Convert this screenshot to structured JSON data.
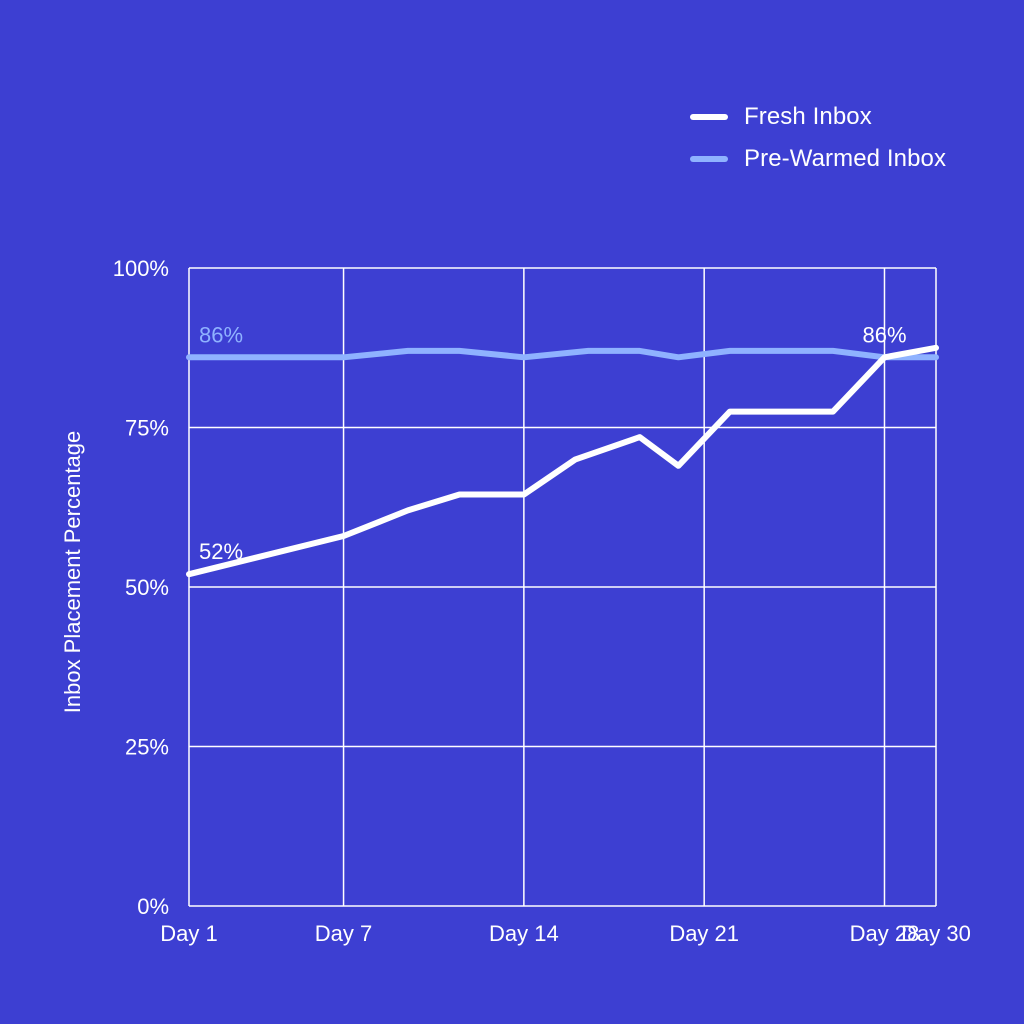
{
  "chart_data": {
    "type": "line",
    "title": "",
    "xlabel": "",
    "ylabel": "Inbox Placement Percentage",
    "x_ticks": [
      "Day 1",
      "Day 7",
      "Day 14",
      "Day 21",
      "Day 28",
      "Day 30"
    ],
    "x_tick_days": [
      1,
      7,
      14,
      21,
      28,
      30
    ],
    "xlim": [
      1,
      30
    ],
    "y_ticks": [
      "0%",
      "25%",
      "50%",
      "75%",
      "100%"
    ],
    "y_tick_values": [
      0,
      25,
      50,
      75,
      100
    ],
    "ylim": [
      0,
      100
    ],
    "grid": true,
    "legend_position": "top-right",
    "series": [
      {
        "name": "Fresh Inbox",
        "color": "#ffffff",
        "x": [
          1,
          7,
          9.5,
          11.5,
          14,
          16,
          18.5,
          20,
          22,
          26,
          28,
          30
        ],
        "values": [
          52,
          58,
          62,
          64.5,
          64.5,
          70,
          73.5,
          69,
          77.5,
          77.5,
          86,
          87.5
        ]
      },
      {
        "name": "Pre-Warmed Inbox",
        "color": "#8fb2ff",
        "x": [
          1,
          7,
          9.5,
          11.5,
          14,
          16.5,
          18.5,
          20,
          22,
          24,
          26,
          28,
          30
        ],
        "values": [
          86,
          86,
          87,
          87,
          86,
          87,
          87,
          86,
          87,
          87,
          87,
          86,
          86
        ]
      }
    ],
    "annotations": [
      {
        "text": "86%",
        "series": "Pre-Warmed Inbox",
        "x": 1,
        "y": 86,
        "color": "#8fb2ff"
      },
      {
        "text": "52%",
        "series": "Fresh Inbox",
        "x": 1,
        "y": 52,
        "color": "#ffffff"
      },
      {
        "text": "86%",
        "series": "Fresh Inbox",
        "x": 28,
        "y": 86,
        "color": "#ffffff"
      }
    ]
  }
}
